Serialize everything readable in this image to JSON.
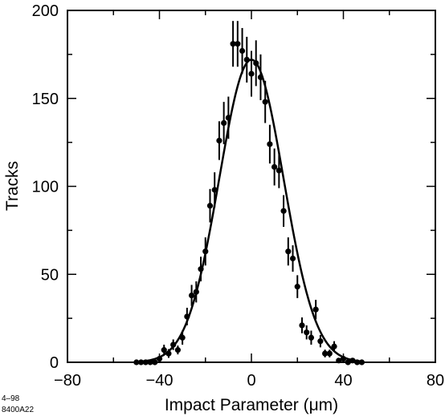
{
  "chart_data": {
    "type": "scatter",
    "xlabel": "Impact Parameter  (μm)",
    "ylabel": "Tracks",
    "xlim": [
      -80,
      80
    ],
    "ylim": [
      0,
      200
    ],
    "xticks": [
      -80,
      -40,
      0,
      40,
      80
    ],
    "xtick_labels": [
      "−80",
      "−40",
      "0",
      "40",
      "80"
    ],
    "yticks": [
      0,
      50,
      100,
      150,
      200
    ],
    "ytick_labels": [
      "0",
      "50",
      "100",
      "150",
      "200"
    ],
    "grid": false,
    "series": [
      {
        "kind": "points_with_error_bars",
        "x": [
          -50,
          -48,
          -46,
          -44,
          -42,
          -40,
          -38,
          -36,
          -34,
          -32,
          -30,
          -28,
          -26,
          -24,
          -22,
          -20,
          -18,
          -16,
          -14,
          -12,
          -10,
          -8,
          -6,
          -4,
          -2,
          0,
          2,
          4,
          6,
          8,
          10,
          12,
          14,
          16,
          18,
          20,
          22,
          24,
          26,
          28,
          30,
          32,
          34,
          36,
          38,
          40,
          42,
          44,
          46,
          48
        ],
        "y": [
          0,
          0,
          0,
          0,
          0,
          2,
          7,
          5,
          10,
          7,
          14,
          26,
          38,
          40,
          53,
          63,
          89,
          98,
          126,
          136,
          139,
          181,
          181,
          177,
          172,
          164,
          170,
          162,
          148,
          124,
          111,
          109,
          86,
          63,
          59,
          43,
          21,
          17,
          14,
          30,
          12,
          5,
          5,
          9,
          1,
          2,
          0,
          1,
          0,
          0
        ],
        "err": [
          0,
          0,
          0,
          0,
          0,
          1.5,
          3,
          2.5,
          3,
          2.5,
          4,
          5,
          6,
          6,
          7,
          8,
          9.5,
          10,
          11,
          12,
          12,
          13,
          13,
          13,
          13,
          13,
          13,
          13,
          12,
          11,
          10.5,
          10,
          9,
          8,
          7.5,
          6.5,
          4.5,
          4,
          4,
          5.5,
          3.5,
          2.2,
          2.2,
          3,
          1,
          1.5,
          0,
          1,
          0,
          0
        ]
      },
      {
        "kind": "fit_curve",
        "function": "gaussian",
        "amplitude": 172,
        "mean": 0,
        "sigma": 14
      }
    ]
  },
  "footnote": {
    "line1": "4–98",
    "line2": "8400A22"
  }
}
